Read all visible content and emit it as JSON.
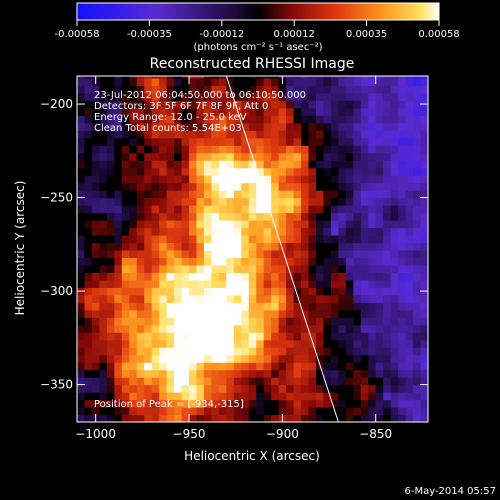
{
  "colorbar": {
    "ticks": [
      "-0.00058",
      "-0.00035",
      "-0.00012",
      "0.00012",
      "0.00035",
      "0.00058"
    ],
    "unit_label": "(photons cm⁻² s⁻¹ asec⁻²)",
    "range": [
      -0.00058,
      0.00058
    ],
    "colormap": "blue-purple-black-red-orange-yellow-white"
  },
  "chart_data": {
    "type": "heatmap",
    "title": "Reconstructed RHESSI Image",
    "xlabel": "Heliocentric X (arcsec)",
    "ylabel": "Heliocentric Y (arcsec)",
    "xlim": [
      -1010,
      -822
    ],
    "ylim": [
      -370,
      -185
    ],
    "x_ticks": [
      -1000,
      -950,
      -900,
      -850
    ],
    "y_ticks": [
      -200,
      -250,
      -300,
      -350
    ],
    "x_tick_labels": [
      "−1000",
      "−950",
      "−900",
      "−850"
    ],
    "y_tick_labels": [
      "−200",
      "−250",
      "−300",
      "−350"
    ],
    "annotations": [
      "23-Jul-2012 06:04:50.000 to 06:10:50.000",
      "Detectors: 3F 5F 6F 7F 8F 9F, Att 0",
      "Energy Range: 12.0 - 25.0 keV",
      "Clean     Total counts: 5.54E+03"
    ],
    "peak_label": "Position of Peak = [-934,-315]",
    "peak": [
      -934,
      -315
    ],
    "bright_sources": [
      {
        "x": -925,
        "y": -260,
        "level": 0.95
      },
      {
        "x": -934,
        "y": -315,
        "level": 1.0
      },
      {
        "x": -965,
        "y": -345,
        "level": 0.8
      },
      {
        "x": -985,
        "y": -300,
        "level": 0.6
      },
      {
        "x": -900,
        "y": -230,
        "level": 0.55
      }
    ],
    "limb_line": [
      [
        -930,
        -185
      ],
      [
        -870,
        -370
      ]
    ]
  },
  "footer": {
    "date": "6-May-2014 05:57"
  }
}
